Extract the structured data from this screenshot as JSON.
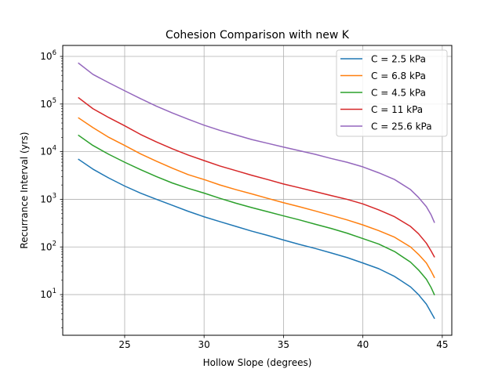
{
  "chart_data": {
    "type": "line",
    "title": "Cohesion Comparison with new K",
    "xlabel": "Hollow Slope (degrees)",
    "ylabel": "Recurrance Interval (yrs)",
    "xlim": [
      21.1,
      45.6
    ],
    "ylim": [
      1.4,
      1700000
    ],
    "yscale": "log",
    "grid": true,
    "legend_position": "top-right",
    "x_ticks": [
      {
        "value": 25,
        "label": "25"
      },
      {
        "value": 30,
        "label": "30"
      },
      {
        "value": 35,
        "label": "35"
      },
      {
        "value": 40,
        "label": "40"
      },
      {
        "value": 45,
        "label": "45"
      }
    ],
    "y_ticks": [
      {
        "value": 10,
        "base": "10",
        "exp": "1"
      },
      {
        "value": 100,
        "base": "10",
        "exp": "2"
      },
      {
        "value": 1000,
        "base": "10",
        "exp": "3"
      },
      {
        "value": 10000,
        "base": "10",
        "exp": "4"
      },
      {
        "value": 100000,
        "base": "10",
        "exp": "5"
      },
      {
        "value": 1000000,
        "base": "10",
        "exp": "6"
      }
    ],
    "x": [
      22.1,
      23,
      24,
      25,
      26,
      27,
      28,
      29,
      30,
      31,
      32,
      33,
      34,
      35,
      36,
      37,
      38,
      39,
      40,
      41,
      42,
      43,
      43.5,
      44,
      44.3,
      44.5
    ],
    "series": [
      {
        "name": "C = 2.5 kPa",
        "color": "#1f77b4",
        "values": [
          6900,
          4300,
          2800,
          1900,
          1350,
          1000,
          750,
          560,
          430,
          340,
          270,
          215,
          175,
          140,
          113,
          93,
          75,
          60,
          46,
          35,
          24,
          14.5,
          10,
          6.3,
          4.2,
          3.2
        ]
      },
      {
        "name": "C = 6.8 kPa",
        "color": "#ff7f0e",
        "values": [
          51000,
          32000,
          20000,
          13500,
          9000,
          6300,
          4500,
          3300,
          2600,
          2000,
          1600,
          1300,
          1050,
          850,
          700,
          570,
          460,
          370,
          290,
          220,
          160,
          100,
          70,
          46,
          31,
          23
        ]
      },
      {
        "name": "C = 4.5 kPa",
        "color": "#2ca02c",
        "values": [
          22000,
          13500,
          8800,
          6000,
          4200,
          3000,
          2200,
          1700,
          1350,
          1050,
          830,
          670,
          550,
          450,
          370,
          300,
          245,
          195,
          150,
          115,
          80,
          48,
          33,
          21,
          14,
          10
        ]
      },
      {
        "name": "C = 11 kPa",
        "color": "#d62728",
        "values": [
          135000,
          80000,
          52000,
          35000,
          23000,
          16000,
          11500,
          8500,
          6500,
          5000,
          4000,
          3200,
          2600,
          2100,
          1750,
          1450,
          1200,
          1000,
          800,
          600,
          430,
          270,
          190,
          120,
          82,
          62
        ]
      },
      {
        "name": "C = 25.6 kPa",
        "color": "#9467bd",
        "values": [
          720000,
          420000,
          280000,
          190000,
          130000,
          90000,
          65000,
          48000,
          36000,
          28000,
          22500,
          18000,
          15000,
          12500,
          10500,
          8800,
          7200,
          6000,
          4800,
          3600,
          2600,
          1600,
          1100,
          700,
          470,
          330
        ]
      }
    ]
  }
}
